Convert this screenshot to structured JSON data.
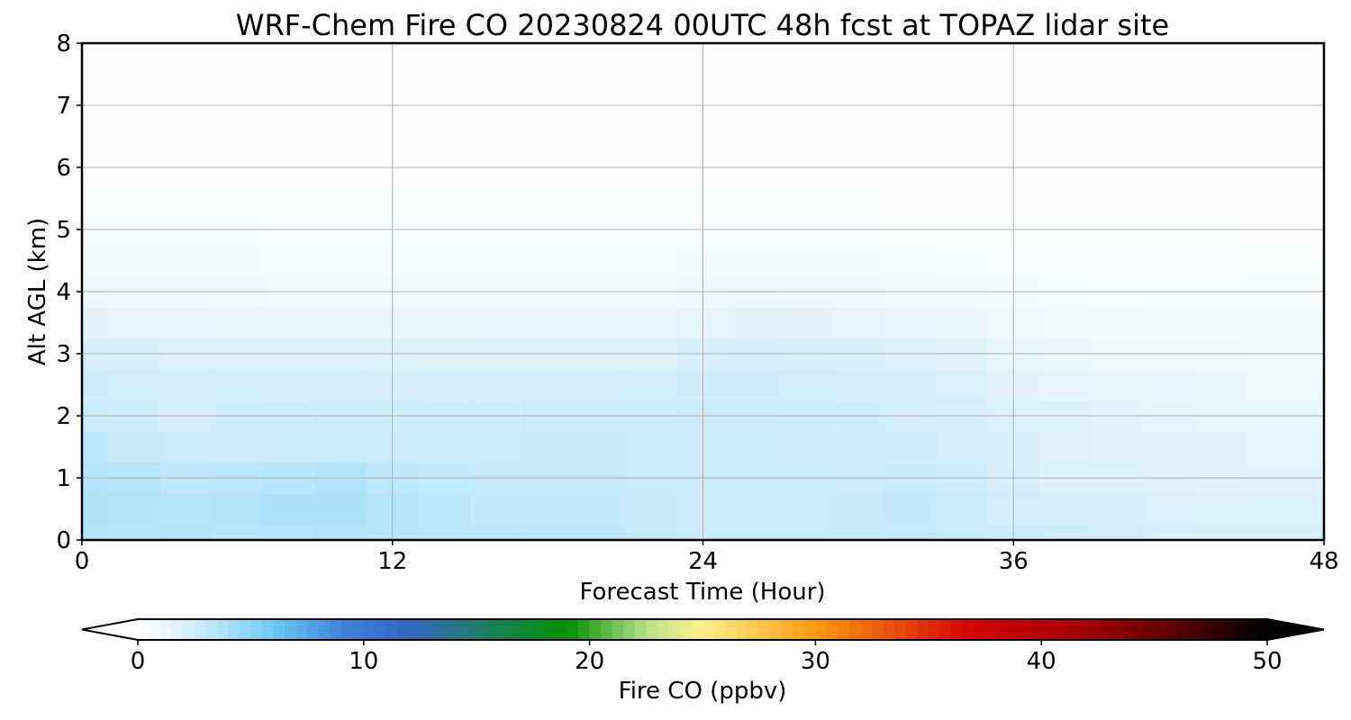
{
  "chart_data": {
    "type": "heatmap",
    "title": "WRF-Chem Fire CO  20230824 00UTC 48h fcst at TOPAZ lidar site",
    "xlabel": "Forecast Time (Hour)",
    "ylabel": "Alt AGL (km)",
    "xlim": [
      0,
      48
    ],
    "ylim": [
      0,
      8
    ],
    "x_ticks": [
      "0",
      "12",
      "24",
      "36",
      "48"
    ],
    "y_ticks": [
      "0",
      "1",
      "2",
      "3",
      "4",
      "5",
      "6",
      "7",
      "8"
    ],
    "grid": true,
    "x": [
      0,
      2,
      4,
      6,
      8,
      10,
      12,
      14,
      16,
      18,
      20,
      22,
      24,
      26,
      28,
      30,
      32,
      34,
      36,
      38,
      40,
      42,
      44,
      46,
      48
    ],
    "y": [
      0,
      0.5,
      1,
      1.5,
      2,
      2.5,
      3,
      3.5,
      4,
      4.5,
      5,
      5.5,
      6,
      6.5,
      7,
      7.5,
      8
    ],
    "z": [
      [
        3.6,
        3.5,
        3.6,
        3.4,
        3.5,
        3.6,
        3.4,
        3.3,
        3.2,
        3.2,
        3.2,
        3.0,
        2.8,
        2.8,
        2.8,
        2.9,
        3.0,
        2.8,
        2.6,
        2.5,
        2.4,
        2.2,
        2.2,
        2.1,
        2.1
      ],
      [
        3.7,
        3.6,
        3.5,
        3.6,
        3.8,
        3.8,
        3.5,
        3.3,
        3.1,
        3.1,
        3.1,
        2.9,
        2.8,
        2.8,
        2.8,
        2.9,
        3.1,
        2.8,
        2.4,
        2.2,
        2.1,
        2.0,
        1.9,
        1.9,
        1.9
      ],
      [
        3.6,
        3.5,
        3.2,
        3.3,
        3.4,
        3.6,
        3.2,
        3.1,
        3.0,
        3.0,
        3.0,
        2.8,
        2.8,
        2.8,
        2.8,
        2.7,
        2.9,
        2.6,
        2.2,
        1.9,
        1.9,
        1.8,
        1.7,
        1.6,
        1.6
      ],
      [
        3.3,
        3.0,
        2.8,
        2.7,
        2.8,
        2.8,
        2.8,
        2.8,
        2.8,
        2.9,
        2.9,
        2.8,
        2.8,
        2.8,
        2.7,
        2.6,
        2.6,
        2.4,
        2.1,
        1.8,
        1.7,
        1.6,
        1.6,
        1.5,
        1.5
      ],
      [
        2.8,
        2.6,
        2.4,
        2.5,
        2.5,
        2.6,
        2.5,
        2.5,
        2.5,
        2.6,
        2.6,
        2.6,
        2.7,
        2.7,
        2.6,
        2.5,
        2.4,
        2.2,
        2.0,
        1.9,
        1.6,
        1.5,
        1.4,
        1.3,
        1.3
      ],
      [
        2.5,
        2.4,
        2.3,
        2.4,
        2.3,
        2.3,
        2.2,
        2.3,
        2.3,
        2.3,
        2.3,
        2.4,
        2.5,
        2.5,
        2.4,
        2.3,
        2.2,
        2.0,
        1.6,
        1.5,
        1.4,
        1.3,
        1.2,
        1.1,
        1.1
      ],
      [
        2.2,
        2.1,
        2.0,
        2.0,
        2.0,
        2.0,
        1.9,
        1.9,
        1.9,
        1.9,
        1.9,
        1.9,
        2.2,
        2.3,
        2.2,
        2.1,
        2.0,
        1.7,
        1.4,
        1.2,
        1.1,
        1.0,
        1.0,
        0.9,
        0.9
      ],
      [
        1.6,
        1.5,
        1.5,
        1.4,
        1.4,
        1.4,
        1.4,
        1.4,
        1.3,
        1.3,
        1.3,
        1.3,
        1.5,
        1.7,
        1.6,
        1.5,
        1.3,
        1.2,
        1.0,
        0.9,
        0.8,
        0.7,
        0.7,
        0.7,
        0.7
      ],
      [
        1.1,
        1.0,
        1.0,
        1.0,
        0.9,
        0.9,
        0.9,
        0.9,
        0.9,
        0.9,
        0.9,
        0.9,
        1.0,
        1.1,
        1.0,
        1.0,
        0.9,
        0.8,
        0.7,
        0.6,
        0.5,
        0.5,
        0.5,
        0.5,
        0.5
      ],
      [
        0.8,
        0.7,
        0.7,
        0.7,
        0.6,
        0.6,
        0.6,
        0.6,
        0.6,
        0.6,
        0.6,
        0.6,
        0.7,
        0.7,
        0.7,
        0.7,
        0.6,
        0.5,
        0.4,
        0.4,
        0.4,
        0.4,
        0.4,
        0.3,
        0.3
      ],
      [
        0.5,
        0.5,
        0.5,
        0.5,
        0.4,
        0.4,
        0.4,
        0.4,
        0.4,
        0.4,
        0.4,
        0.4,
        0.4,
        0.4,
        0.4,
        0.4,
        0.3,
        0.3,
        0.3,
        0.3,
        0.3,
        0.3,
        0.3,
        0.2,
        0.2
      ],
      [
        0.3,
        0.3,
        0.3,
        0.3,
        0.3,
        0.3,
        0.3,
        0.3,
        0.3,
        0.3,
        0.3,
        0.3,
        0.3,
        0.3,
        0.3,
        0.3,
        0.2,
        0.2,
        0.2,
        0.2,
        0.2,
        0.2,
        0.2,
        0.2,
        0.2
      ],
      [
        0.2,
        0.2,
        0.2,
        0.2,
        0.2,
        0.2,
        0.2,
        0.2,
        0.2,
        0.2,
        0.2,
        0.2,
        0.2,
        0.2,
        0.2,
        0.2,
        0.2,
        0.2,
        0.2,
        0.2,
        0.2,
        0.2,
        0.2,
        0.2,
        0.2
      ],
      [
        0.2,
        0.2,
        0.2,
        0.2,
        0.2,
        0.2,
        0.2,
        0.2,
        0.2,
        0.2,
        0.2,
        0.2,
        0.2,
        0.2,
        0.2,
        0.2,
        0.2,
        0.2,
        0.2,
        0.2,
        0.2,
        0.2,
        0.2,
        0.2,
        0.2
      ],
      [
        0.1,
        0.1,
        0.1,
        0.1,
        0.1,
        0.1,
        0.1,
        0.1,
        0.1,
        0.1,
        0.1,
        0.1,
        0.1,
        0.1,
        0.1,
        0.1,
        0.1,
        0.1,
        0.1,
        0.1,
        0.1,
        0.1,
        0.1,
        0.1,
        0.1
      ],
      [
        0.1,
        0.1,
        0.1,
        0.1,
        0.1,
        0.1,
        0.1,
        0.1,
        0.1,
        0.1,
        0.1,
        0.1,
        0.1,
        0.1,
        0.1,
        0.1,
        0.1,
        0.1,
        0.1,
        0.1,
        0.1,
        0.1,
        0.1,
        0.1,
        0.1
      ],
      [
        0.1,
        0.1,
        0.1,
        0.1,
        0.1,
        0.1,
        0.1,
        0.1,
        0.1,
        0.1,
        0.1,
        0.1,
        0.1,
        0.1,
        0.1,
        0.1,
        0.1,
        0.1,
        0.1,
        0.1,
        0.1,
        0.1,
        0.1,
        0.1,
        0.1
      ]
    ],
    "colorbar": {
      "label": "Fire CO  (ppbv)",
      "range": [
        0,
        50
      ],
      "ticks": [
        "0",
        "10",
        "20",
        "30",
        "40",
        "50"
      ],
      "extend": "both",
      "colormap_stops": [
        {
          "value": 0,
          "color": "#ffffff"
        },
        {
          "value": 1.5,
          "color": "#e6f4fb"
        },
        {
          "value": 3,
          "color": "#c4e9fb"
        },
        {
          "value": 6,
          "color": "#6dcaf7"
        },
        {
          "value": 9,
          "color": "#3f84d9"
        },
        {
          "value": 12,
          "color": "#3565c0"
        },
        {
          "value": 15,
          "color": "#1f7d6c"
        },
        {
          "value": 19,
          "color": "#009000"
        },
        {
          "value": 22.5,
          "color": "#b9e08a"
        },
        {
          "value": 25,
          "color": "#fff08c"
        },
        {
          "value": 30,
          "color": "#ff9a10"
        },
        {
          "value": 37,
          "color": "#d20000"
        },
        {
          "value": 42,
          "color": "#a00000"
        },
        {
          "value": 46,
          "color": "#5a0000"
        },
        {
          "value": 50,
          "color": "#000000"
        }
      ]
    }
  }
}
